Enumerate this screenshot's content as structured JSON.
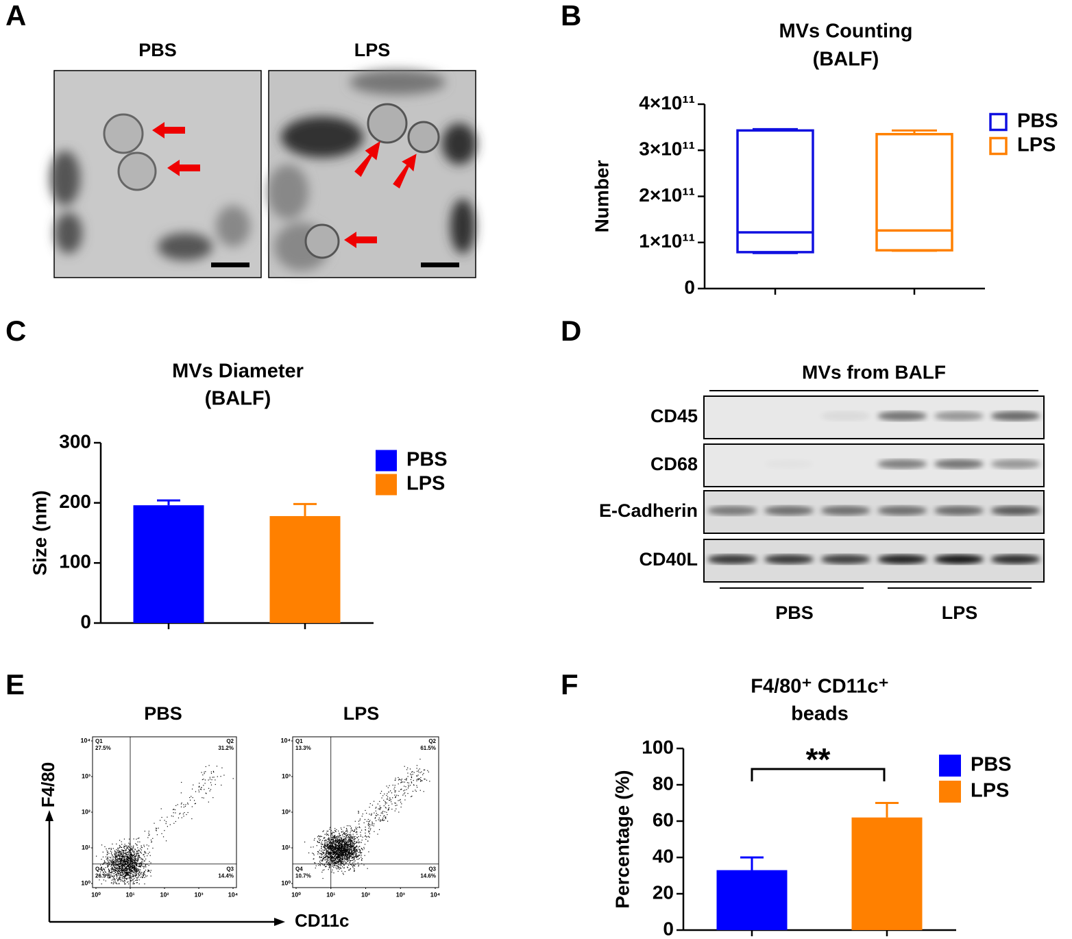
{
  "panel_labels": [
    "A",
    "B",
    "C",
    "D",
    "E",
    "F"
  ],
  "tem": {
    "titles": [
      "PBS",
      "LPS"
    ]
  },
  "chart_data": [
    {
      "type": "box",
      "title": [
        "MVs Counting",
        "(BALF)"
      ],
      "ylabel": "Number",
      "ylim": [
        0,
        400000000000
      ],
      "yticks": [
        0,
        {
          "value": 100000000000,
          "label": "1×10¹¹"
        },
        {
          "value": 200000000000,
          "label": "2×10¹¹"
        },
        {
          "value": 300000000000,
          "label": "3×10¹¹"
        },
        {
          "value": 400000000000,
          "label": "4×10¹¹"
        }
      ],
      "legend": "upper right",
      "series": [
        {
          "name": "PBS",
          "color": "#1010e0",
          "min": 77000000000,
          "q1": 79000000000,
          "median": 122000000000,
          "q3": 343000000000,
          "max": 346000000000
        },
        {
          "name": "LPS",
          "color": "#ff8000",
          "min": 82000000000,
          "q1": 83000000000,
          "median": 126000000000,
          "q3": 335000000000,
          "max": 343000000000
        }
      ]
    },
    {
      "type": "bar",
      "title": [
        "MVs Diameter",
        "(BALF)"
      ],
      "ylabel": "Size (nm)",
      "ylim": [
        0,
        300
      ],
      "yticks": [
        0,
        100,
        200,
        300
      ],
      "legend": "upper right",
      "series": [
        {
          "name": "PBS",
          "color": "#0000ff",
          "values": [
            196
          ],
          "errors": [
            8
          ]
        },
        {
          "name": "LPS",
          "color": "#ff8000",
          "values": [
            178
          ],
          "errors": [
            20
          ]
        }
      ]
    },
    {
      "type": "bar",
      "title": [
        "F4/80⁺ CD11c⁺",
        "beads"
      ],
      "ylabel": "Percentage (%)",
      "ylim": [
        0,
        100
      ],
      "yticks": [
        0,
        20,
        40,
        60,
        80,
        100
      ],
      "legend": "upper right",
      "annotation": "**",
      "series": [
        {
          "name": "PBS",
          "color": "#0000ff",
          "values": [
            33
          ],
          "errors": [
            7
          ]
        },
        {
          "name": "LPS",
          "color": "#ff8000",
          "values": [
            62
          ],
          "errors": [
            8
          ]
        }
      ]
    }
  ],
  "western": {
    "title": "MVs from BALF",
    "rows": [
      "CD45",
      "CD68",
      "E-Cadherin",
      "CD40L"
    ],
    "groups": [
      "PBS",
      "LPS"
    ]
  },
  "flow": {
    "ylabel": "F4/80",
    "xlabel": "CD11c",
    "ticks": [
      "10⁰",
      "10¹",
      "10²",
      "10³",
      "10⁴"
    ],
    "panels": [
      {
        "title": "PBS",
        "quadrants": [
          {
            "name": "Q1",
            "value": "27.5%"
          },
          {
            "name": "Q2",
            "value": "31.2%"
          },
          {
            "name": "Q3",
            "value": "14.4%"
          },
          {
            "name": "Q4",
            "value": "26.9%"
          }
        ]
      },
      {
        "title": "LPS",
        "quadrants": [
          {
            "name": "Q1",
            "value": "13.3%"
          },
          {
            "name": "Q2",
            "value": "61.5%"
          },
          {
            "name": "Q3",
            "value": "14.6%"
          },
          {
            "name": "Q4",
            "value": "10.7%"
          }
        ]
      }
    ]
  }
}
